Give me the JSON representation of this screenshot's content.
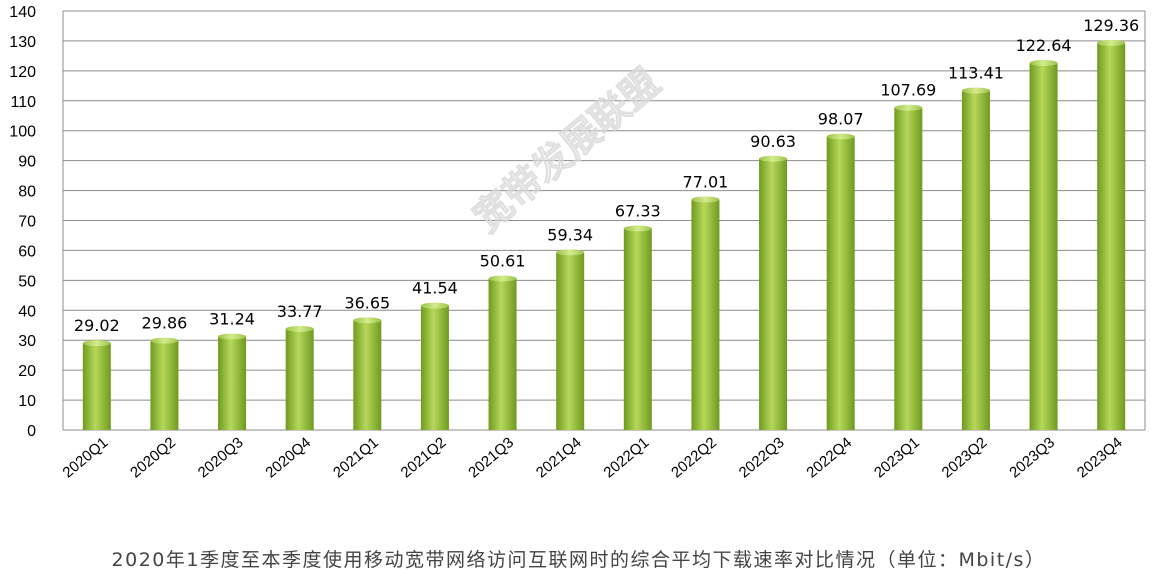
{
  "chart_data": {
    "type": "bar",
    "categories": [
      "2020Q1",
      "2020Q2",
      "2020Q3",
      "2020Q4",
      "2021Q1",
      "2021Q2",
      "2021Q3",
      "2021Q4",
      "2022Q1",
      "2022Q2",
      "2022Q3",
      "2022Q4",
      "2023Q1",
      "2023Q2",
      "2023Q3",
      "2023Q4"
    ],
    "values": [
      29.02,
      29.86,
      31.24,
      33.77,
      36.65,
      41.54,
      50.61,
      59.34,
      67.33,
      77.01,
      90.63,
      98.07,
      107.69,
      113.41,
      122.64,
      129.36
    ],
    "data_labels": [
      "29.02",
      "29.86",
      "31.24",
      "33.77",
      "36.65",
      "41.54",
      "50.61",
      "59.34",
      "67.33",
      "77.01",
      "90.63",
      "98.07",
      "107.69",
      "113.41",
      "122.64",
      "129.36"
    ],
    "ylim": [
      0,
      140
    ],
    "yticks": [
      0,
      10,
      20,
      30,
      40,
      50,
      60,
      70,
      80,
      90,
      100,
      110,
      120,
      130,
      140
    ],
    "title": "",
    "xlabel": "",
    "ylabel": "",
    "grid": true,
    "legend": "none",
    "bar_color": "#8cb33a"
  },
  "caption": "2020年1季度至本季度使用移动宽带网络访问互联网时的综合平均下载速率对比情况（单位：Mbit/s）",
  "watermark": "宽带发展联盟"
}
